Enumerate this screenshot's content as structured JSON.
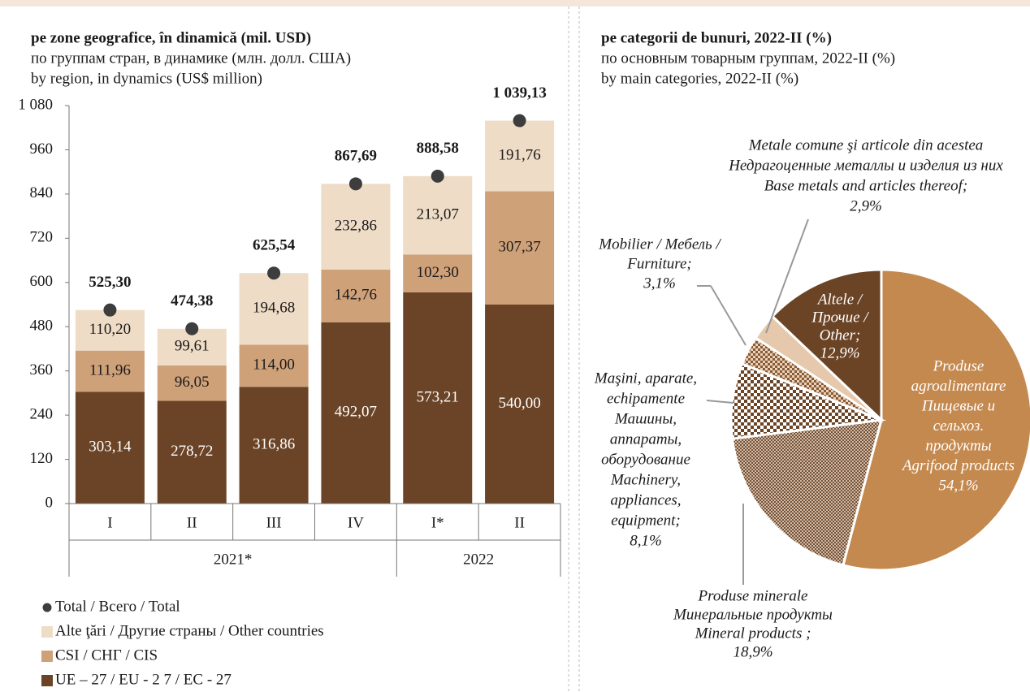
{
  "chart_data": [
    {
      "type": "bar",
      "stacked": true,
      "title": [
        "pe zone geografice, în dinamică (mil. USD)",
        "по группам стран, в динамике (млн. долл. США)",
        "by region, in dynamics (US$ million)"
      ],
      "categories": [
        "I",
        "II",
        "III",
        "IV",
        "I*",
        "II"
      ],
      "x_groups": [
        {
          "label": "2021*",
          "count": 4
        },
        {
          "label": "2022",
          "count": 2
        }
      ],
      "ylim": [
        0,
        1080
      ],
      "yticks": [
        0,
        120,
        240,
        360,
        480,
        600,
        720,
        840,
        960,
        {
          "value": 1080,
          "label": "1 080"
        }
      ],
      "series": [
        {
          "name": "UE – 27 / EU - 2 7 / EC - 27",
          "color": "#6b4427",
          "label_color": "#ffffff",
          "values": [
            303.14,
            278.72,
            316.86,
            492.07,
            573.21,
            540.0
          ],
          "value_labels": [
            "303,14",
            "278,72",
            "316,86",
            "492,07",
            "573,21",
            "540,00"
          ]
        },
        {
          "name": "CSI / СНГ / CIS",
          "color": "#cfa179",
          "label_color": "#1a1a1a",
          "values": [
            111.96,
            96.05,
            114.0,
            142.76,
            102.3,
            307.37
          ],
          "value_labels": [
            "111,96",
            "96,05",
            "114,00",
            "142,76",
            "102,30",
            "307,37"
          ]
        },
        {
          "name": "Alte ţări / Другие страны / Other countries",
          "color": "#efdcc7",
          "label_color": "#1a1a1a",
          "values": [
            110.2,
            99.61,
            194.68,
            232.86,
            213.07,
            191.76
          ],
          "value_labels": [
            "110,20",
            "99,61",
            "194,68",
            "232,86",
            "213,07",
            "191,76"
          ]
        },
        {
          "name": "Total / Всего / Total",
          "color": "#3d3d3d",
          "type": "dot",
          "values": [
            525.3,
            474.38,
            625.54,
            867.69,
            888.58,
            1039.13
          ],
          "value_labels": [
            "525,30",
            "474,38",
            "625,54",
            "867,69",
            "888,58",
            "1 039,13"
          ]
        }
      ]
    },
    {
      "type": "pie",
      "title": [
        "pe categorii de bunuri, 2022-II (%)",
        "по основным товарным группам, 2022-II (%)",
        "by main categories, 2022-II (%)"
      ],
      "labels": [
        [
          "Produse",
          "agroalimentare",
          "Пищевые и",
          "сельхоз.",
          "продукты",
          "Agrifood products"
        ],
        [
          "Produse minerale",
          "Минеральные продукты",
          "Mineral products ;"
        ],
        [
          "Maşini, aparate,",
          "echipamente",
          "Машины,",
          "аппараты,",
          "оборудование",
          "Machinery,",
          "appliances,",
          "equipment;"
        ],
        [
          "Mobilier / Мебель /",
          "Furniture;"
        ],
        [
          "Metale comune şi articole din acestea",
          "Недрагоценные металлы и изделия из них",
          "Base metals and articles thereof;"
        ],
        [
          "Altele /",
          "Прочие /",
          "Other;"
        ]
      ],
      "values": [
        54.1,
        18.9,
        8.1,
        3.1,
        2.9,
        12.9
      ],
      "value_labels": [
        "54,1%",
        "18,9%",
        "8,1%",
        "3,1%",
        "2,9%",
        "12,9%"
      ],
      "colors": [
        "#c4894f",
        "url(#pat-min)",
        "url(#pat-mach)",
        "url(#pat-furn)",
        "#e6c9ad",
        "#6b4426"
      ]
    }
  ]
}
